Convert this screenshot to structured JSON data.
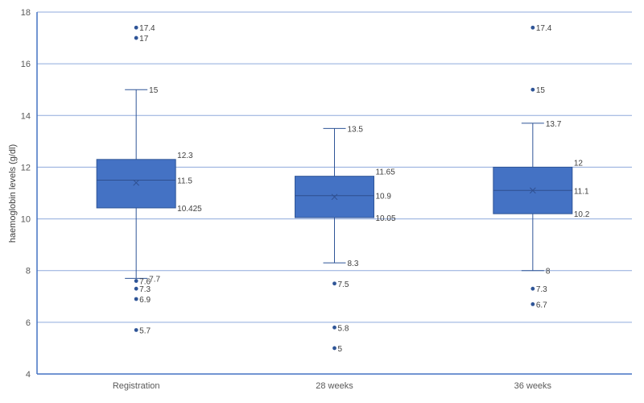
{
  "chart_data": {
    "type": "boxplot",
    "ylabel": "haemoglobin levels (g/dl)",
    "xlabel": "",
    "ylim": [
      4,
      18
    ],
    "yticks": [
      4,
      6,
      8,
      10,
      12,
      14,
      16,
      18
    ],
    "grid": true,
    "categories": [
      "Registration",
      "28 weeks",
      "36 weeks"
    ],
    "boxes": [
      {
        "category": "Registration",
        "whisker_low": 7.7,
        "q1": 10.425,
        "median": 11.5,
        "q3": 12.3,
        "whisker_high": 15,
        "mean": 11.4,
        "outliers": [
          17.4,
          17,
          7.6,
          7.3,
          6.9,
          5.7
        ],
        "labels": {
          "whisker_low": "7.7",
          "q1": "10.425",
          "median": "11.5",
          "q3": "12.3",
          "whisker_high": "15"
        },
        "outlier_labels": [
          "17.4",
          "17",
          "7.6",
          "7.3",
          "6.9",
          "5.7"
        ]
      },
      {
        "category": "28 weeks",
        "whisker_low": 8.3,
        "q1": 10.05,
        "median": 10.9,
        "q3": 11.65,
        "whisker_high": 13.5,
        "mean": 10.85,
        "outliers": [
          7.5,
          5.8,
          5
        ],
        "labels": {
          "whisker_low": "8.3",
          "q1": "10.05",
          "median": "10.9",
          "q3": "11.65",
          "whisker_high": "13.5"
        },
        "outlier_labels": [
          "7.5",
          "5.8",
          "5"
        ]
      },
      {
        "category": "36 weeks",
        "whisker_low": 8,
        "q1": 10.2,
        "median": 11.1,
        "q3": 12,
        "whisker_high": 13.7,
        "mean": 11.1,
        "outliers": [
          17.4,
          15,
          7.3,
          6.7
        ],
        "labels": {
          "whisker_low": "8",
          "q1": "10.2",
          "median": "11.1",
          "q3": "12",
          "whisker_high": "13.7"
        },
        "outlier_labels": [
          "17.4",
          "15",
          "7.3",
          "6.7"
        ]
      }
    ],
    "colors": {
      "box": "#4472C4",
      "box_stroke": "#2F5597",
      "grid": "#8FAADC",
      "axis": "#4472C4",
      "point": "#2F5597"
    }
  }
}
